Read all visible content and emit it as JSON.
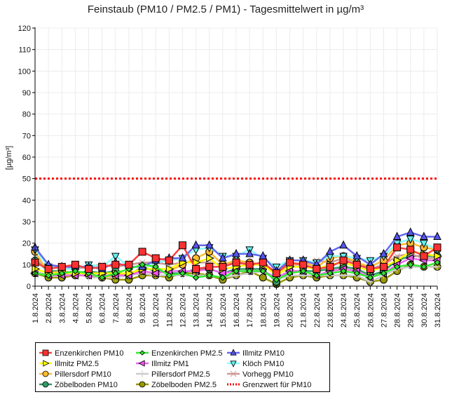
{
  "chart_data": {
    "type": "line",
    "title": "Feinstaub (PM10 / PM2.5 / PM1) -  Tagesmittelwert in µg/m³",
    "xlabel": "",
    "ylabel": "[µg/m³]",
    "ylim": [
      0,
      120
    ],
    "yticks": [
      0,
      10,
      20,
      30,
      40,
      50,
      60,
      70,
      80,
      90,
      100,
      110,
      120
    ],
    "grid": true,
    "legend_position": "bottom",
    "categories": [
      "1.8.2024",
      "2.8.2024",
      "3.8.2024",
      "4.8.2024",
      "5.8.2024",
      "6.8.2024",
      "7.8.2024",
      "8.8.2024",
      "9.8.2024",
      "10.8.2024",
      "11.8.2024",
      "12.8.2024",
      "13.8.2024",
      "14.8.2024",
      "15.8.2024",
      "16.8.2024",
      "17.8.2024",
      "18.8.2024",
      "19.8.2024",
      "20.8.2024",
      "21.8.2024",
      "22.8.2024",
      "23.8.2024",
      "24.8.2024",
      "25.8.2024",
      "26.8.2024",
      "27.8.2024",
      "28.8.2024",
      "29.8.2024",
      "30.8.2024",
      "31.8.2024"
    ],
    "series": [
      {
        "name": "Enzenkirchen PM10",
        "color": "#ff4040",
        "marker": "square",
        "fill": "#ff3030",
        "values": [
          11,
          8,
          9,
          10,
          8,
          9,
          10,
          10,
          16,
          13,
          12,
          19,
          8,
          9,
          9,
          11,
          10,
          11,
          6,
          11,
          10,
          8,
          9,
          12,
          10,
          8,
          9,
          18,
          17,
          14,
          18
        ]
      },
      {
        "name": "Enzenkirchen PM2.5",
        "color": "#33ee33",
        "marker": "diamond",
        "fill": "#33dd33",
        "values": [
          6,
          5,
          6,
          7,
          6,
          4,
          6,
          8,
          10,
          9,
          5,
          6,
          4,
          5,
          4,
          7,
          7,
          7,
          3,
          6,
          7,
          5,
          6,
          7,
          6,
          4,
          6,
          9,
          10,
          9,
          11
        ]
      },
      {
        "name": "Illmitz PM10",
        "color": "#6666ee",
        "marker": "triangle-up",
        "fill": "#5555ee",
        "values": [
          18,
          10,
          9,
          9,
          9,
          8,
          11,
          9,
          9,
          12,
          13,
          13,
          19,
          19,
          13,
          15,
          15,
          14,
          7,
          12,
          12,
          10,
          16,
          19,
          14,
          10,
          15,
          23,
          25,
          23,
          23
        ]
      },
      {
        "name": "Illmitz PM2.5",
        "color": "#ffff00",
        "marker": "triangle-right",
        "fill": "#ffff00",
        "values": [
          8,
          6,
          6,
          6,
          6,
          6,
          6,
          6,
          8,
          8,
          8,
          11,
          11,
          13,
          8,
          9,
          10,
          10,
          5,
          9,
          9,
          8,
          10,
          11,
          9,
          7,
          9,
          12,
          16,
          15,
          14
        ]
      },
      {
        "name": "Illmitz PM1",
        "color": "#ee66ee",
        "marker": "triangle-left",
        "fill": "#ee55ee",
        "values": [
          6,
          5,
          5,
          5,
          5,
          5,
          5,
          5,
          7,
          6,
          7,
          7,
          7,
          8,
          6,
          7,
          7,
          7,
          4,
          7,
          7,
          5,
          7,
          8,
          7,
          4,
          6,
          10,
          13,
          12,
          12
        ]
      },
      {
        "name": "Klöch PM10",
        "color": "#88ffff",
        "marker": "triangle-down",
        "fill": "#66eeee",
        "values": [
          17,
          9,
          8,
          8,
          10,
          9,
          14,
          9,
          9,
          11,
          12,
          13,
          17,
          18,
          14,
          14,
          17,
          13,
          9,
          12,
          12,
          11,
          14,
          14,
          13,
          12,
          14,
          20,
          22,
          20,
          17
        ]
      },
      {
        "name": "Pillersdorf PM10",
        "color": "#ffbb33",
        "marker": "circle",
        "fill": "#ffbb33",
        "values": [
          16,
          6,
          7,
          6,
          6,
          4,
          5,
          6,
          7,
          6,
          7,
          10,
          13,
          16,
          10,
          12,
          11,
          10,
          6,
          10,
          11,
          9,
          13,
          14,
          11,
          9,
          12,
          19,
          20,
          18,
          17
        ]
      },
      {
        "name": "Pillersdorf PM2.5",
        "color": "#cccccc",
        "marker": "plus",
        "fill": "#cccccc",
        "values": [
          7,
          5,
          5,
          6,
          4,
          4,
          4,
          5,
          6,
          5,
          5,
          5,
          5,
          5,
          4,
          5,
          6,
          7,
          3,
          5,
          5,
          5,
          5,
          5,
          5,
          2,
          5,
          8,
          9,
          9,
          9
        ]
      },
      {
        "name": "Vorhegg PM10",
        "color": "#cc9999",
        "marker": "cross",
        "fill": "#cc9999",
        "values": [
          12,
          9,
          9,
          8,
          9,
          10,
          9,
          10,
          11,
          11,
          10,
          11,
          11,
          11,
          10,
          11,
          11,
          10,
          7,
          10,
          10,
          12,
          11,
          13,
          11,
          8,
          10,
          14,
          15,
          13,
          13
        ]
      },
      {
        "name": "Zöbelboden PM10",
        "color": "#339966",
        "marker": "circle",
        "fill": "#339966",
        "values": [
          12,
          7,
          7,
          6,
          7,
          6,
          7,
          5,
          9,
          7,
          6,
          6,
          8,
          8,
          6,
          8,
          8,
          8,
          2,
          7,
          7,
          7,
          8,
          9,
          8,
          5,
          7,
          12,
          14,
          14,
          14
        ]
      },
      {
        "name": "Zöbelboden PM2.5",
        "color": "#999900",
        "marker": "circle",
        "fill": "#999900",
        "values": [
          6,
          4,
          4,
          5,
          5,
          4,
          3,
          3,
          5,
          5,
          4,
          6,
          6,
          5,
          3,
          5,
          7,
          4,
          1,
          4,
          5,
          4,
          5,
          5,
          4,
          2,
          3,
          7,
          10,
          9,
          9
        ]
      }
    ],
    "threshold": {
      "name": "Grenzwert für PM10",
      "value": 50,
      "color": "#ff0000"
    }
  }
}
